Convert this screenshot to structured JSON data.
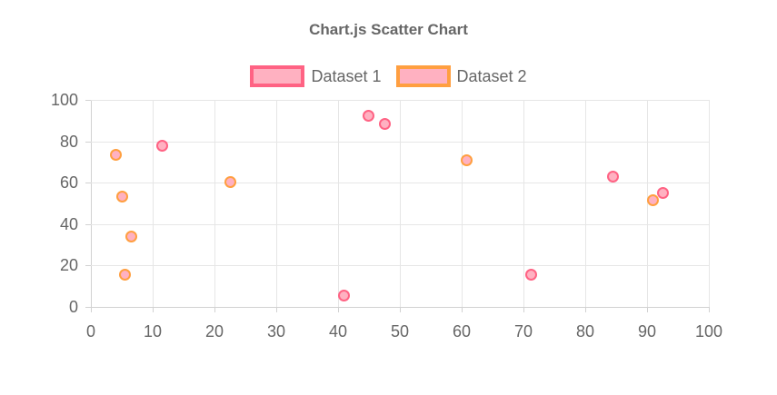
{
  "title": "Chart.js Scatter Chart",
  "colors": {
    "text": "#666666",
    "grid": "#e6e6e6",
    "axis_border": "#d2d2d2",
    "background": "#ffffff",
    "dataset1_border": "#ff6384",
    "dataset2_border": "#ff9f40",
    "point_fill": "#ffb1c1"
  },
  "legend": {
    "items": [
      {
        "label": "Dataset 1",
        "fill": "#ffb1c1",
        "border": "#ff6384"
      },
      {
        "label": "Dataset 2",
        "fill": "#ffb1c1",
        "border": "#ff9f40"
      }
    ]
  },
  "chart_data": {
    "type": "scatter",
    "title": "Chart.js Scatter Chart",
    "xlabel": "",
    "ylabel": "",
    "xlim": [
      0,
      100
    ],
    "ylim": [
      0,
      100
    ],
    "xticks": [
      0,
      10,
      20,
      30,
      40,
      50,
      60,
      70,
      80,
      90,
      100
    ],
    "yticks": [
      0,
      20,
      40,
      60,
      80,
      100
    ],
    "grid": true,
    "legend_position": "top",
    "series": [
      {
        "name": "Dataset 1",
        "border_color": "#ff6384",
        "fill_color": "#ffb1c1",
        "points": [
          {
            "x": 11.5,
            "y": 78
          },
          {
            "x": 41,
            "y": 5.5
          },
          {
            "x": 44.9,
            "y": 92.5
          },
          {
            "x": 47.5,
            "y": 88.5
          },
          {
            "x": 71.3,
            "y": 15.5
          },
          {
            "x": 84.5,
            "y": 63
          },
          {
            "x": 92.5,
            "y": 55
          }
        ]
      },
      {
        "name": "Dataset 2",
        "border_color": "#ff9f40",
        "fill_color": "#ffb1c1",
        "points": [
          {
            "x": 4,
            "y": 73.5
          },
          {
            "x": 5,
            "y": 53.5
          },
          {
            "x": 5.5,
            "y": 15.5
          },
          {
            "x": 6.5,
            "y": 34
          },
          {
            "x": 22.5,
            "y": 60.5
          },
          {
            "x": 60.8,
            "y": 71
          },
          {
            "x": 91,
            "y": 51.5
          }
        ]
      }
    ]
  }
}
